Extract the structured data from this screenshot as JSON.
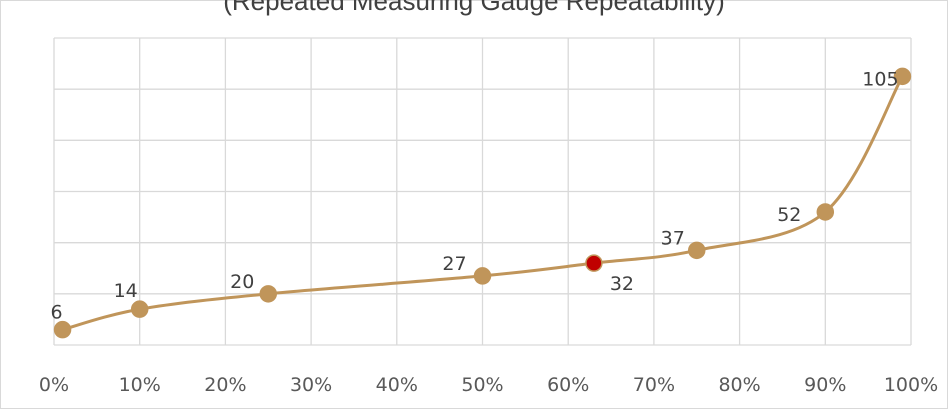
{
  "chart_data": {
    "type": "line",
    "title": "(Repeated Measuring Gauge Repeatability)",
    "xlabel": "",
    "ylabel": "",
    "x_tick_labels": [
      "0%",
      "10%",
      "20%",
      "30%",
      "40%",
      "50%",
      "60%",
      "70%",
      "80%",
      "90%",
      "100%"
    ],
    "xlim": [
      0,
      100
    ],
    "ylim": [
      0,
      120
    ],
    "grid": true,
    "legend": "none",
    "series": [
      {
        "color": "#c0955a",
        "smooth": true,
        "points": [
          {
            "x": 1,
            "y": 6,
            "label": "6"
          },
          {
            "x": 10,
            "y": 14,
            "label": "14"
          },
          {
            "x": 25,
            "y": 20,
            "label": "20"
          },
          {
            "x": 50,
            "y": 27,
            "label": "27"
          },
          {
            "x": 63,
            "y": 32,
            "label": "32",
            "highlight": true,
            "highlight_color": "#c00000"
          },
          {
            "x": 75,
            "y": 37,
            "label": "37"
          },
          {
            "x": 90,
            "y": 52,
            "label": "52"
          },
          {
            "x": 99,
            "y": 105,
            "label": "105"
          }
        ]
      }
    ]
  }
}
